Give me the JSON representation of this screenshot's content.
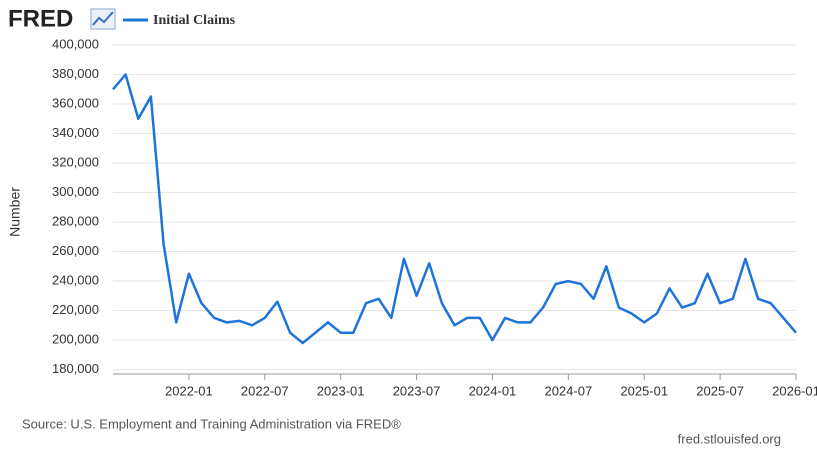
{
  "logo": "FRED",
  "source": "Source: U.S. Employment and Training Administration via FRED®",
  "site": "fred.stlouisfed.org",
  "chart_data": {
    "type": "line",
    "ylabel": "Number",
    "x": [
      "2021-07",
      "2021-08",
      "2021-09",
      "2021-10",
      "2021-11",
      "2021-12",
      "2022-01",
      "2022-02",
      "2022-03",
      "2022-04",
      "2022-05",
      "2022-06",
      "2022-07",
      "2022-08",
      "2022-09",
      "2022-10",
      "2022-11",
      "2022-12",
      "2023-01",
      "2023-02",
      "2023-03",
      "2023-04",
      "2023-05",
      "2023-06",
      "2023-07",
      "2023-08",
      "2023-09",
      "2023-10",
      "2023-11",
      "2023-12",
      "2024-01",
      "2024-02",
      "2024-03",
      "2024-04",
      "2024-05",
      "2024-06",
      "2024-07",
      "2024-08",
      "2024-09",
      "2024-10",
      "2024-11",
      "2024-12",
      "2025-01",
      "2025-02",
      "2025-03",
      "2025-04",
      "2025-05",
      "2025-06",
      "2025-07",
      "2025-08",
      "2025-09",
      "2025-10",
      "2025-11",
      "2025-12",
      "2026-01"
    ],
    "series": [
      {
        "name": "Initial Claims",
        "color": "#1f74db",
        "values": [
          370000,
          380000,
          350000,
          365000,
          265000,
          212000,
          245000,
          225000,
          215000,
          212000,
          213000,
          210000,
          215000,
          226000,
          205000,
          198000,
          205000,
          212000,
          205000,
          205000,
          225000,
          228000,
          215000,
          255000,
          230000,
          252000,
          225000,
          210000,
          215000,
          215000,
          200000,
          215000,
          212000,
          212000,
          222000,
          238000,
          240000,
          238000,
          228000,
          250000,
          222000,
          218000,
          212000,
          218000,
          235000,
          222000,
          225000,
          245000,
          225000,
          228000,
          255000,
          228000,
          225000,
          215000,
          205000
        ]
      }
    ],
    "xticks": [
      "2022-01",
      "2022-07",
      "2023-01",
      "2023-07",
      "2024-01",
      "2024-07",
      "2025-01",
      "2025-07",
      "2026-01"
    ],
    "ylim": [
      177000,
      400000
    ],
    "yticks": [
      {
        "value": 180000,
        "label": "180,000"
      },
      {
        "value": 200000,
        "label": "200,000"
      },
      {
        "value": 220000,
        "label": "220,000"
      },
      {
        "value": 240000,
        "label": "240,000"
      },
      {
        "value": 260000,
        "label": "260,000"
      },
      {
        "value": 280000,
        "label": "280,000"
      },
      {
        "value": 300000,
        "label": "300,000"
      },
      {
        "value": 320000,
        "label": "320,000"
      },
      {
        "value": 340000,
        "label": "340,000"
      },
      {
        "value": 360000,
        "label": "360,000"
      },
      {
        "value": 380000,
        "label": "380,000"
      },
      {
        "value": 400000,
        "label": "400,000"
      }
    ],
    "grid": true
  }
}
